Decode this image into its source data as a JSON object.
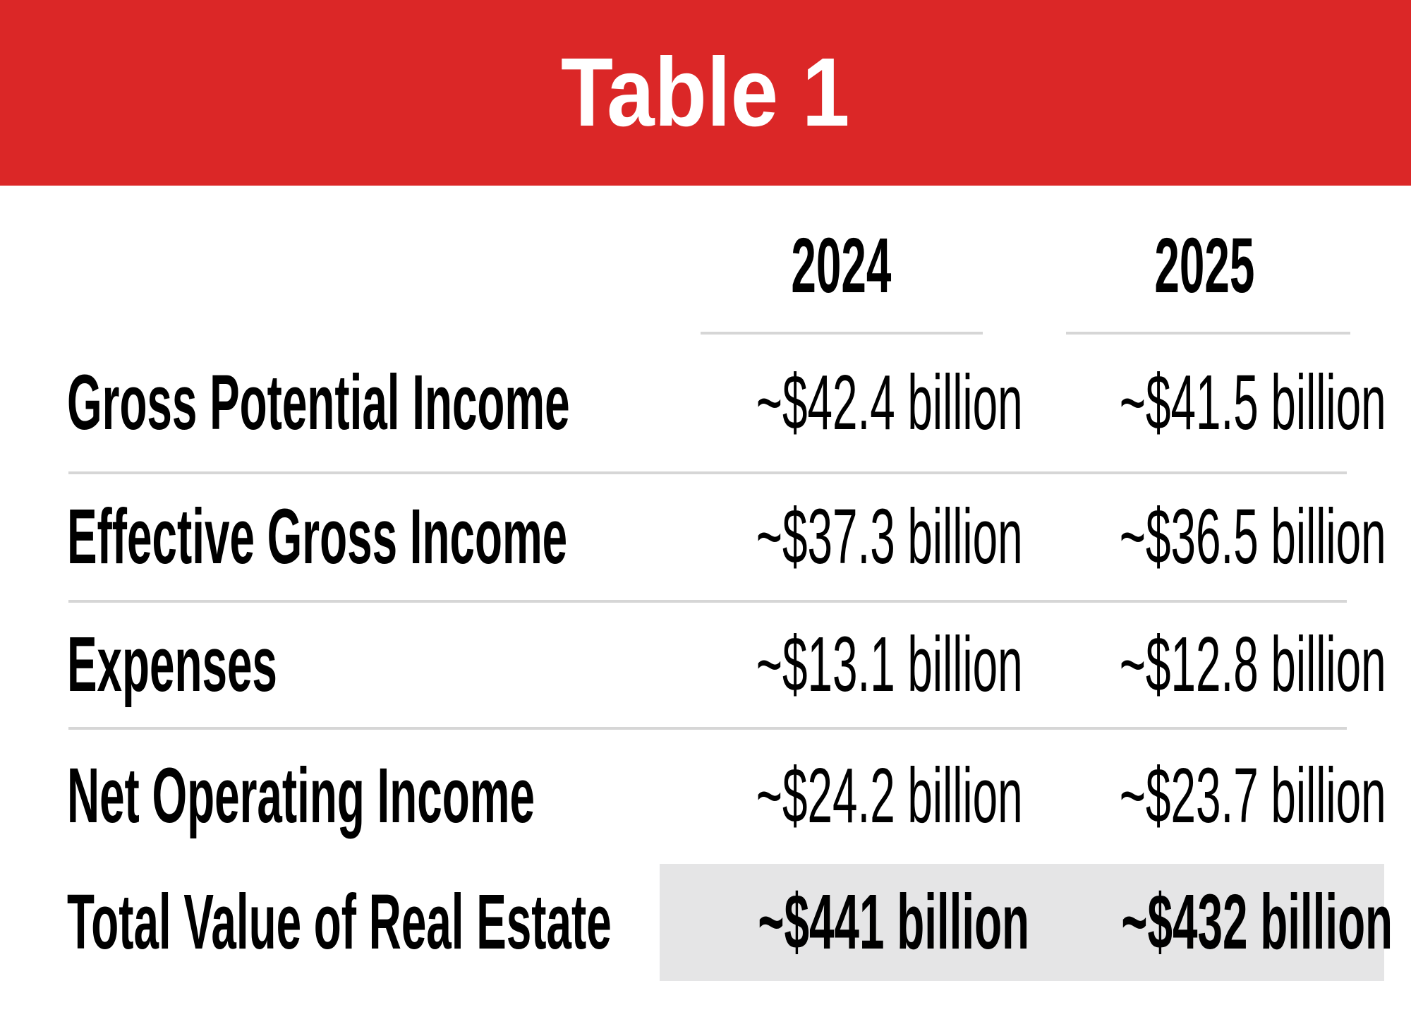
{
  "title": "Table 1",
  "table": {
    "column_headers": [
      "2024",
      "2025"
    ],
    "rows": [
      {
        "label": "Gross Potential Income",
        "values": [
          "~$42.4 billion",
          "~$41.5 billion"
        ],
        "highlight": false
      },
      {
        "label": "Effective Gross Income",
        "values": [
          "~$37.3 billion",
          "~$36.5 billion"
        ],
        "highlight": false
      },
      {
        "label": "Expenses",
        "values": [
          "~$13.1 billion",
          "~$12.8 billion"
        ],
        "highlight": false
      },
      {
        "label": "Net Operating Income",
        "values": [
          "~$24.2 billion",
          "~$23.7 billion"
        ],
        "highlight": false
      },
      {
        "label": "Total Value of Real Estate",
        "values": [
          "~$441 billion",
          "~$432 billion"
        ],
        "highlight": true
      }
    ]
  },
  "chart_data": {
    "type": "table",
    "title": "Table 1",
    "columns": [
      "2024",
      "2025"
    ],
    "categories": [
      "Gross Potential Income",
      "Effective Gross Income",
      "Expenses",
      "Net Operating Income",
      "Total Value of Real Estate"
    ],
    "series": [
      {
        "name": "2024",
        "values": [
          42.4,
          37.3,
          13.1,
          24.2,
          441
        ]
      },
      {
        "name": "2025",
        "values": [
          41.5,
          36.5,
          12.8,
          23.7,
          432
        ]
      }
    ],
    "units": "USD billions (approximate, prefixed with ~)",
    "highlighted_row": "Total Value of Real Estate"
  },
  "colors": {
    "banner_red": "#DB2727",
    "title_white": "#FFFFFF",
    "text_black": "#000000",
    "line_gray": "#D6D6D6",
    "highlight_gray": "#E5E5E6"
  }
}
